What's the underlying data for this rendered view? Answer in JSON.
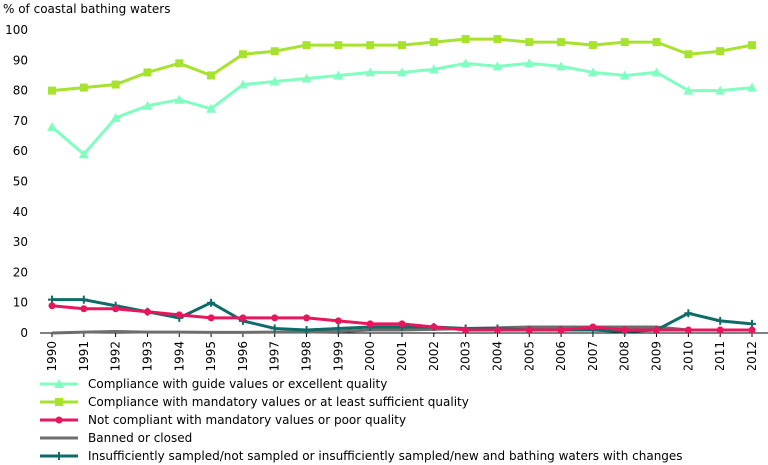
{
  "chart_data": {
    "type": "line",
    "title": "",
    "ylabel": "% of coastal bathing waters",
    "xlabel": "",
    "ylim": [
      0,
      100
    ],
    "yticks": [
      0,
      10,
      20,
      30,
      40,
      50,
      60,
      70,
      80,
      90,
      100
    ],
    "x": [
      "1990",
      "1991",
      "1992",
      "1993",
      "1994",
      "1995",
      "1996",
      "1997",
      "1998",
      "1999",
      "2000",
      "2001",
      "2002",
      "2003",
      "2004",
      "2005",
      "2006",
      "2007",
      "2008",
      "2009",
      "2010",
      "2011",
      "2012"
    ],
    "grid": false,
    "legend_position": "bottom",
    "series": [
      {
        "name": "Compliance with guide values or excellent quality",
        "color": "#80ffc0",
        "marker": "triangle",
        "values": [
          68,
          59,
          71,
          75,
          77,
          74,
          82,
          83,
          84,
          85,
          86,
          86,
          87,
          89,
          88,
          89,
          88,
          86,
          85,
          86,
          80,
          80,
          81
        ]
      },
      {
        "name": "Compliance with mandatory values or at least sufficient quality",
        "color": "#a6e22e",
        "marker": "square",
        "values": [
          80,
          81,
          82,
          86,
          89,
          85,
          92,
          93,
          95,
          95,
          95,
          95,
          96,
          97,
          97,
          96,
          96,
          95,
          96,
          96,
          92,
          93,
          95
        ]
      },
      {
        "name": "Not compliant with mandatory values or poor quality",
        "color": "#e8175d",
        "marker": "circle",
        "values": [
          9,
          8,
          8,
          7,
          6,
          5,
          5,
          5,
          5,
          4,
          3,
          3,
          2,
          1,
          1,
          1,
          1,
          2,
          1,
          1,
          1,
          1,
          1
        ]
      },
      {
        "name": "Banned or closed",
        "color": "#6d6d6d",
        "marker": "none",
        "values": [
          0,
          0.3,
          0.5,
          0.3,
          0.3,
          0.2,
          0.2,
          0.3,
          0.3,
          0.5,
          1,
          1,
          1.2,
          1.5,
          1.7,
          2,
          2,
          2,
          2,
          2,
          1,
          1,
          1
        ]
      },
      {
        "name": "Insufficiently sampled/not sampled or insufficiently sampled/new and bathing waters with changes",
        "color": "#0e6b68",
        "marker": "plus",
        "values": [
          11,
          11,
          9,
          7,
          5,
          10,
          4,
          1.5,
          1,
          1.5,
          2,
          2,
          2,
          1.5,
          1.5,
          1,
          1,
          1,
          0.5,
          1,
          6.5,
          4,
          3
        ]
      }
    ]
  }
}
